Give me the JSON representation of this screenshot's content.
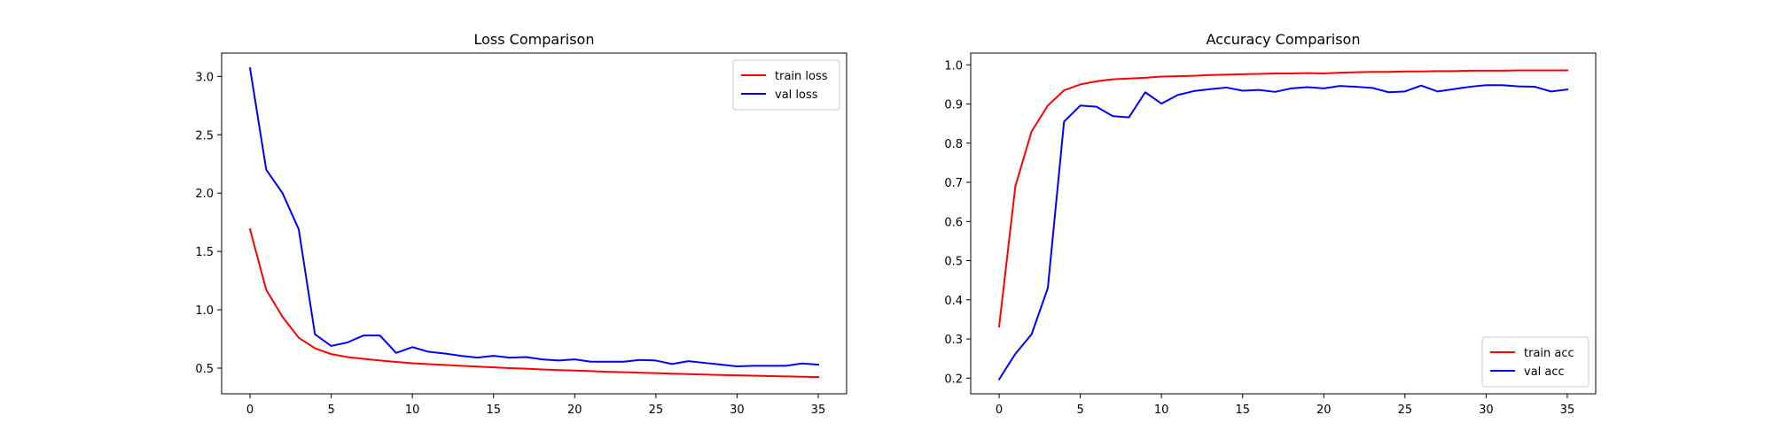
{
  "chart_data": [
    {
      "type": "line",
      "title": "Loss Comparison",
      "xlabel": "",
      "ylabel": "",
      "xlim": [
        -1.75,
        36.75
      ],
      "ylim": [
        0.28,
        3.2
      ],
      "xticks": [
        0,
        5,
        10,
        15,
        20,
        25,
        30,
        35
      ],
      "xtick_labels": [
        "0",
        "5",
        "10",
        "15",
        "20",
        "25",
        "30",
        "35"
      ],
      "yticks": [
        0.5,
        1.0,
        1.5,
        2.0,
        2.5,
        3.0
      ],
      "ytick_labels": [
        "0.5",
        "1.0",
        "1.5",
        "2.0",
        "2.5",
        "3.0"
      ],
      "grid": false,
      "legend_position": "top-right",
      "series": [
        {
          "name": "train loss",
          "color": "#ff0000",
          "x": [
            0,
            1,
            2,
            3,
            4,
            5,
            6,
            7,
            8,
            9,
            10,
            11,
            12,
            13,
            14,
            15,
            16,
            17,
            18,
            19,
            20,
            21,
            22,
            23,
            24,
            25,
            26,
            27,
            28,
            29,
            30,
            31,
            32,
            33,
            34,
            35
          ],
          "values": [
            1.69,
            1.17,
            0.94,
            0.76,
            0.67,
            0.62,
            0.595,
            0.58,
            0.565,
            0.553,
            0.542,
            0.534,
            0.527,
            0.52,
            0.513,
            0.507,
            0.5,
            0.495,
            0.489,
            0.483,
            0.479,
            0.474,
            0.469,
            0.465,
            0.461,
            0.457,
            0.453,
            0.449,
            0.445,
            0.441,
            0.438,
            0.435,
            0.432,
            0.429,
            0.426,
            0.423
          ]
        },
        {
          "name": "val loss",
          "color": "#0000ff",
          "x": [
            0,
            1,
            2,
            3,
            4,
            5,
            6,
            7,
            8,
            9,
            10,
            11,
            12,
            13,
            14,
            15,
            16,
            17,
            18,
            19,
            20,
            21,
            22,
            23,
            24,
            25,
            26,
            27,
            28,
            29,
            30,
            31,
            32,
            33,
            34,
            35
          ],
          "values": [
            3.07,
            2.2,
            2.0,
            1.69,
            0.79,
            0.69,
            0.72,
            0.78,
            0.78,
            0.63,
            0.68,
            0.64,
            0.625,
            0.605,
            0.59,
            0.605,
            0.59,
            0.595,
            0.575,
            0.565,
            0.575,
            0.555,
            0.555,
            0.555,
            0.57,
            0.565,
            0.535,
            0.56,
            0.545,
            0.53,
            0.515,
            0.52,
            0.52,
            0.52,
            0.54,
            0.53
          ]
        }
      ]
    },
    {
      "type": "line",
      "title": "Accuracy Comparison",
      "xlabel": "",
      "ylabel": "",
      "xlim": [
        -1.75,
        36.75
      ],
      "ylim": [
        0.16,
        1.03
      ],
      "xticks": [
        0,
        5,
        10,
        15,
        20,
        25,
        30,
        35
      ],
      "xtick_labels": [
        "0",
        "5",
        "10",
        "15",
        "20",
        "25",
        "30",
        "35"
      ],
      "yticks": [
        0.2,
        0.3,
        0.4,
        0.5,
        0.6,
        0.7,
        0.8,
        0.9,
        1.0
      ],
      "ytick_labels": [
        "0.2",
        "0.3",
        "0.4",
        "0.5",
        "0.6",
        "0.7",
        "0.8",
        "0.9",
        "1.0"
      ],
      "grid": false,
      "legend_position": "bottom-right",
      "series": [
        {
          "name": "train acc",
          "color": "#ff0000",
          "x": [
            0,
            1,
            2,
            3,
            4,
            5,
            6,
            7,
            8,
            9,
            10,
            11,
            12,
            13,
            14,
            15,
            16,
            17,
            18,
            19,
            20,
            21,
            22,
            23,
            24,
            25,
            26,
            27,
            28,
            29,
            30,
            31,
            32,
            33,
            34,
            35
          ],
          "values": [
            0.332,
            0.69,
            0.83,
            0.896,
            0.935,
            0.95,
            0.958,
            0.963,
            0.965,
            0.967,
            0.97,
            0.971,
            0.972,
            0.974,
            0.975,
            0.976,
            0.977,
            0.978,
            0.978,
            0.979,
            0.978,
            0.98,
            0.981,
            0.982,
            0.982,
            0.983,
            0.983,
            0.984,
            0.984,
            0.985,
            0.985,
            0.985,
            0.986,
            0.986,
            0.986,
            0.986
          ]
        },
        {
          "name": "val acc",
          "color": "#0000ff",
          "x": [
            0,
            1,
            2,
            3,
            4,
            5,
            6,
            7,
            8,
            9,
            10,
            11,
            12,
            13,
            14,
            15,
            16,
            17,
            18,
            19,
            20,
            21,
            22,
            23,
            24,
            25,
            26,
            27,
            28,
            29,
            30,
            31,
            32,
            33,
            34,
            35
          ],
          "values": [
            0.197,
            0.262,
            0.312,
            0.43,
            0.855,
            0.896,
            0.893,
            0.869,
            0.866,
            0.93,
            0.901,
            0.923,
            0.933,
            0.938,
            0.942,
            0.934,
            0.936,
            0.931,
            0.94,
            0.943,
            0.94,
            0.946,
            0.944,
            0.941,
            0.93,
            0.932,
            0.947,
            0.932,
            0.938,
            0.944,
            0.948,
            0.948,
            0.945,
            0.944,
            0.932,
            0.937
          ]
        }
      ]
    }
  ]
}
